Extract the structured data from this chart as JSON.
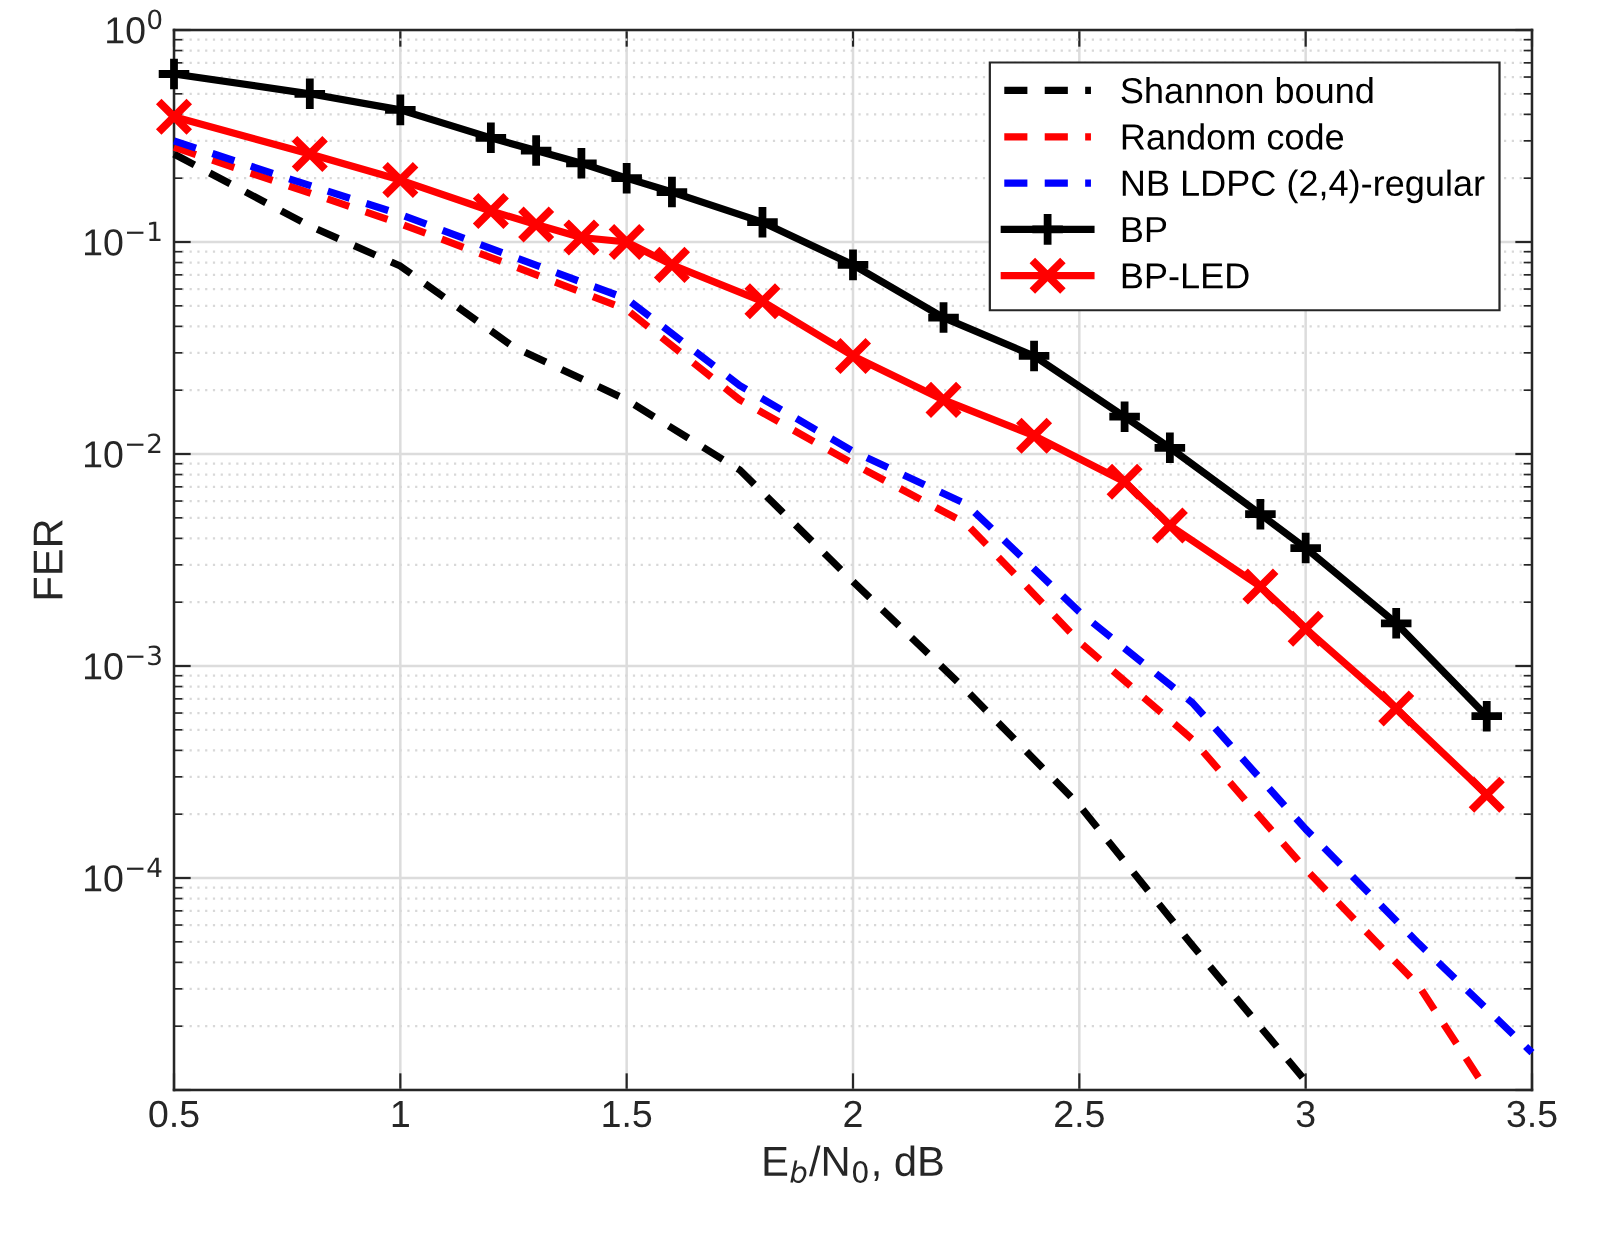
{
  "chart_data": {
    "type": "line",
    "xlabel": "E$_{b}$/N$_{0}$, dB",
    "ylabel": "FER",
    "log": "y",
    "xlim": [
      0.5,
      3.5
    ],
    "xticks": [
      0.5,
      1,
      1.5,
      2,
      2.5,
      3,
      3.5
    ],
    "ylim": [
      1e-05,
      1
    ],
    "yticks": [
      {
        "value": 1e-05,
        "label": null
      },
      {
        "value": 0.0001,
        "label": "10$^{−4}$"
      },
      {
        "value": 0.001,
        "label": "10$^{−3}$"
      },
      {
        "value": 0.01,
        "label": "10$^{−2}$"
      },
      {
        "value": 0.1,
        "label": "10$^{−1}$"
      },
      {
        "value": 1,
        "label": "10$^{0}$"
      }
    ],
    "grid": true,
    "legend": "top right",
    "series": [
      {
        "name": "Shannon bound",
        "color": "#000000",
        "line_style": "dashed",
        "marker": "none",
        "x": [
          0.5,
          0.8,
          1.0,
          1.25,
          1.5,
          1.75,
          2.0,
          2.25,
          2.5,
          2.75,
          3.0
        ],
        "values": [
          0.26,
          0.119,
          0.077,
          0.032,
          0.018,
          0.0084,
          0.0025,
          0.00077,
          0.00022,
          4.8e-05,
          1.1e-05
        ]
      },
      {
        "name": "Random code",
        "color": "#ff0000",
        "line_style": "dashed",
        "marker": "none",
        "x": [
          0.5,
          0.75,
          1.0,
          1.25,
          1.5,
          1.75,
          2.0,
          2.25,
          2.5,
          2.75,
          3.0,
          3.25,
          3.4
        ],
        "values": [
          0.28,
          0.185,
          0.122,
          0.077,
          0.048,
          0.018,
          0.009,
          0.0047,
          0.0013,
          0.00045,
          0.00011,
          3.1e-05,
          1e-05
        ]
      },
      {
        "name": "NB LDPC (2,4)-regular",
        "color": "#0000ff",
        "line_style": "dashed",
        "marker": "none",
        "x": [
          0.5,
          0.75,
          1.0,
          1.25,
          1.5,
          1.75,
          2.0,
          2.25,
          2.5,
          2.75,
          3.0,
          3.25,
          3.5
        ],
        "values": [
          0.3,
          0.2,
          0.135,
          0.085,
          0.054,
          0.021,
          0.0103,
          0.0058,
          0.0018,
          0.00067,
          0.00017,
          4.9e-05,
          1.5e-05
        ]
      },
      {
        "name": "BP",
        "color": "#000000",
        "line_style": "solid",
        "marker": "plus",
        "x": [
          0.5,
          0.8,
          1.0,
          1.2,
          1.3,
          1.4,
          1.5,
          1.6,
          1.8,
          2.0,
          2.2,
          2.4,
          2.6,
          2.7,
          2.9,
          3.0,
          3.2,
          3.4
        ],
        "values": [
          0.62,
          0.5,
          0.42,
          0.31,
          0.27,
          0.235,
          0.2,
          0.172,
          0.124,
          0.078,
          0.044,
          0.029,
          0.015,
          0.0107,
          0.0052,
          0.0036,
          0.00159,
          0.00058
        ]
      },
      {
        "name": "BP-LED",
        "color": "#ff0000",
        "line_style": "solid",
        "marker": "cross",
        "x": [
          0.5,
          0.8,
          1.0,
          1.2,
          1.3,
          1.4,
          1.5,
          1.6,
          1.8,
          2.0,
          2.2,
          2.4,
          2.6,
          2.7,
          2.9,
          3.0,
          3.2,
          3.4
        ],
        "values": [
          0.39,
          0.26,
          0.196,
          0.14,
          0.121,
          0.105,
          0.1,
          0.078,
          0.0525,
          0.029,
          0.018,
          0.0122,
          0.0074,
          0.0046,
          0.00237,
          0.0015,
          0.00063,
          0.000247
        ]
      }
    ]
  }
}
